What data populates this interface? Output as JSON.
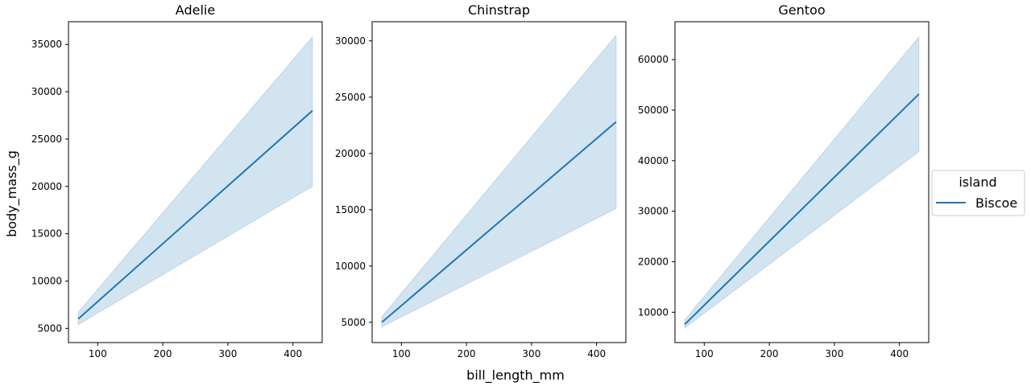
{
  "figure": {
    "xlabel": "bill_length_mm",
    "ylabel": "body_mass_g"
  },
  "legend": {
    "title": "island",
    "entries": [
      {
        "label": "Biscoe",
        "color": "#1f77b4"
      }
    ],
    "placement": "center-right"
  },
  "colors": {
    "line": "#1f77b4",
    "band": "#1f77b4"
  },
  "chart_data": [
    {
      "type": "line",
      "title": "Adelie",
      "series": [
        {
          "name": "Biscoe",
          "x": [
            70,
            430
          ],
          "y": [
            6000,
            28000
          ],
          "ci_lower": [
            5400,
            20000
          ],
          "ci_upper": [
            6700,
            35800
          ]
        }
      ],
      "xlim": [
        55,
        445
      ],
      "ylim": [
        3500,
        37400
      ],
      "xticks": [
        100,
        200,
        300,
        400
      ],
      "yticks": [
        5000,
        10000,
        15000,
        20000,
        25000,
        30000,
        35000
      ],
      "grid": false
    },
    {
      "type": "line",
      "title": "Chinstrap",
      "series": [
        {
          "name": "Biscoe",
          "x": [
            70,
            430
          ],
          "y": [
            5000,
            22800
          ],
          "ci_lower": [
            4600,
            15100
          ],
          "ci_upper": [
            5500,
            30500
          ]
        }
      ],
      "xlim": [
        55,
        445
      ],
      "ylim": [
        3200,
        31700
      ],
      "xticks": [
        100,
        200,
        300,
        400
      ],
      "yticks": [
        5000,
        10000,
        15000,
        20000,
        25000,
        30000
      ],
      "grid": false
    },
    {
      "type": "line",
      "title": "Gentoo",
      "series": [
        {
          "name": "Biscoe",
          "x": [
            70,
            430
          ],
          "y": [
            7600,
            53200
          ],
          "ci_lower": [
            6900,
            41800
          ],
          "ci_upper": [
            8500,
            64500
          ]
        }
      ],
      "xlim": [
        55,
        445
      ],
      "ylim": [
        4000,
        67500
      ],
      "xticks": [
        100,
        200,
        300,
        400
      ],
      "yticks": [
        10000,
        20000,
        30000,
        40000,
        50000,
        60000
      ],
      "grid": false
    }
  ]
}
